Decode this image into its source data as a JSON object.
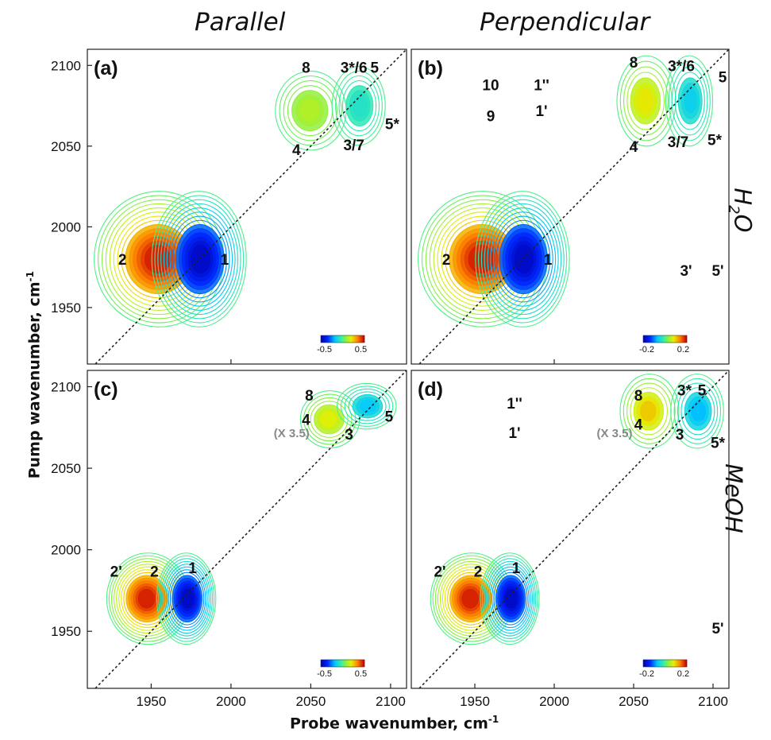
{
  "figure": {
    "column_titles": [
      "Parallel",
      "Perpendicular"
    ],
    "row_labels": [
      {
        "main": "H",
        "sub": "2",
        "rest": "O"
      },
      {
        "main": "MeOH",
        "sub": "",
        "rest": ""
      }
    ],
    "xlabel_main": "Probe wavenumber, cm",
    "xlabel_sup": "-1",
    "ylabel_main": "Pump wavenumber, cm",
    "ylabel_sup": "-1"
  },
  "chart_data": [
    {
      "type": "heatmap",
      "panel": "(a)",
      "x_ticks": [
        2000
      ],
      "y_ticks": [
        2100,
        2050,
        2000,
        1950
      ],
      "xlim": [
        1910,
        2110
      ],
      "ylim": [
        1915,
        2110
      ],
      "colorbar": {
        "ticks": [
          "-0.5",
          "0.5"
        ],
        "range": [
          -0.6,
          0.6
        ]
      },
      "peaks": [
        {
          "x": 1955,
          "y": 1980,
          "sign": "positive",
          "amp": 1.0,
          "sx": 22,
          "sy": 24
        },
        {
          "x": 1980,
          "y": 1980,
          "sign": "negative",
          "amp": 1.0,
          "sx": 16,
          "sy": 24
        },
        {
          "x": 2050,
          "y": 2072,
          "sign": "positive",
          "amp": 0.3,
          "sx": 12,
          "sy": 14
        },
        {
          "x": 2080,
          "y": 2075,
          "sign": "negative",
          "amp": 0.2,
          "sx": 9,
          "sy": 14
        }
      ],
      "annotations": [
        {
          "label": "1",
          "x": 1996,
          "y": 1980
        },
        {
          "label": "2",
          "x": 1932,
          "y": 1980
        },
        {
          "label": "3*/6",
          "x": 2077,
          "y": 2099
        },
        {
          "label": "3/7",
          "x": 2077,
          "y": 2051
        },
        {
          "label": "4",
          "x": 2041,
          "y": 2048
        },
        {
          "label": "5",
          "x": 2090,
          "y": 2099
        },
        {
          "label": "5*",
          "x": 2101,
          "y": 2064
        },
        {
          "label": "8",
          "x": 2047,
          "y": 2099
        }
      ]
    },
    {
      "type": "heatmap",
      "panel": "(b)",
      "x_ticks": [
        2000
      ],
      "y_ticks": [],
      "xlim": [
        1910,
        2110
      ],
      "ylim": [
        1915,
        2110
      ],
      "colorbar": {
        "ticks": [
          "-0.2",
          "0.2"
        ],
        "range": [
          -0.24,
          0.24
        ]
      },
      "peaks": [
        {
          "x": 1955,
          "y": 1980,
          "sign": "positive",
          "amp": 1.0,
          "sx": 22,
          "sy": 24
        },
        {
          "x": 1980,
          "y": 1980,
          "sign": "negative",
          "amp": 1.0,
          "sx": 16,
          "sy": 24
        },
        {
          "x": 2058,
          "y": 2078,
          "sign": "positive",
          "amp": 0.5,
          "sx": 10,
          "sy": 16
        },
        {
          "x": 2085,
          "y": 2078,
          "sign": "negative",
          "amp": 0.35,
          "sx": 8,
          "sy": 16
        }
      ],
      "annotations": [
        {
          "label": "10",
          "x": 1960,
          "y": 2088
        },
        {
          "label": "1''",
          "x": 1992,
          "y": 2088
        },
        {
          "label": "9",
          "x": 1960,
          "y": 2069
        },
        {
          "label": "1'",
          "x": 1992,
          "y": 2072
        },
        {
          "label": "8",
          "x": 2050,
          "y": 2102
        },
        {
          "label": "3*/6",
          "x": 2080,
          "y": 2100
        },
        {
          "label": "5",
          "x": 2106,
          "y": 2093
        },
        {
          "label": "4",
          "x": 2050,
          "y": 2050
        },
        {
          "label": "3/7",
          "x": 2078,
          "y": 2053
        },
        {
          "label": "5*",
          "x": 2101,
          "y": 2054
        },
        {
          "label": "1",
          "x": 1996,
          "y": 1980
        },
        {
          "label": "2",
          "x": 1932,
          "y": 1980
        },
        {
          "label": "3'",
          "x": 2083,
          "y": 1973
        },
        {
          "label": "5'",
          "x": 2103,
          "y": 1973
        }
      ]
    },
    {
      "type": "heatmap",
      "panel": "(c)",
      "x_ticks": [
        1950,
        2000,
        2050,
        2100
      ],
      "y_ticks": [
        2100,
        2050,
        2000,
        1950
      ],
      "xlim": [
        1910,
        2110
      ],
      "ylim": [
        1915,
        2110
      ],
      "colorbar": {
        "ticks": [
          "-0.5",
          "0.5"
        ],
        "range": [
          -0.6,
          0.6
        ]
      },
      "peaks": [
        {
          "x": 1948,
          "y": 1970,
          "sign": "positive",
          "amp": 1.0,
          "sx": 14,
          "sy": 16
        },
        {
          "x": 1972,
          "y": 1970,
          "sign": "negative",
          "amp": 1.0,
          "sx": 10,
          "sy": 16
        },
        {
          "x": 2062,
          "y": 2080,
          "sign": "positive",
          "amp": 0.45,
          "sx": 10,
          "sy": 10
        },
        {
          "x": 2085,
          "y": 2088,
          "sign": "negative",
          "amp": 0.4,
          "sx": 10,
          "sy": 8
        }
      ],
      "annotations": [
        {
          "label": "2'",
          "x": 1928,
          "y": 1987
        },
        {
          "label": "2",
          "x": 1952,
          "y": 1987
        },
        {
          "label": "1",
          "x": 1976,
          "y": 1989
        },
        {
          "label": "8",
          "x": 2049,
          "y": 2095
        },
        {
          "label": "4",
          "x": 2047,
          "y": 2080
        },
        {
          "label": "3",
          "x": 2074,
          "y": 2071
        },
        {
          "label": "5",
          "x": 2099,
          "y": 2082
        }
      ],
      "scale_note": "(X 3.5)"
    },
    {
      "type": "heatmap",
      "panel": "(d)",
      "x_ticks": [
        1950,
        2000,
        2050,
        2100
      ],
      "y_ticks": [],
      "xlim": [
        1910,
        2110
      ],
      "ylim": [
        1915,
        2110
      ],
      "colorbar": {
        "ticks": [
          "-0.2",
          "0.2"
        ],
        "range": [
          -0.24,
          0.24
        ]
      },
      "peaks": [
        {
          "x": 1948,
          "y": 1970,
          "sign": "positive",
          "amp": 1.0,
          "sx": 14,
          "sy": 16
        },
        {
          "x": 1972,
          "y": 1970,
          "sign": "negative",
          "amp": 1.0,
          "sx": 10,
          "sy": 16
        },
        {
          "x": 2060,
          "y": 2085,
          "sign": "positive",
          "amp": 0.6,
          "sx": 10,
          "sy": 13
        },
        {
          "x": 2090,
          "y": 2085,
          "sign": "negative",
          "amp": 0.45,
          "sx": 9,
          "sy": 13
        }
      ],
      "annotations": [
        {
          "label": "1''",
          "x": 1975,
          "y": 2090
        },
        {
          "label": "1'",
          "x": 1975,
          "y": 2072
        },
        {
          "label": "8",
          "x": 2053,
          "y": 2095
        },
        {
          "label": "3*",
          "x": 2082,
          "y": 2098
        },
        {
          "label": "5",
          "x": 2093,
          "y": 2098
        },
        {
          "label": "4",
          "x": 2053,
          "y": 2077
        },
        {
          "label": "3",
          "x": 2079,
          "y": 2071
        },
        {
          "label": "5*",
          "x": 2103,
          "y": 2066
        },
        {
          "label": "2'",
          "x": 1928,
          "y": 1987
        },
        {
          "label": "2",
          "x": 1952,
          "y": 1987
        },
        {
          "label": "1",
          "x": 1976,
          "y": 1989
        },
        {
          "label": "5'",
          "x": 2103,
          "y": 1952
        }
      ],
      "scale_note": "(X 3.5)"
    }
  ]
}
